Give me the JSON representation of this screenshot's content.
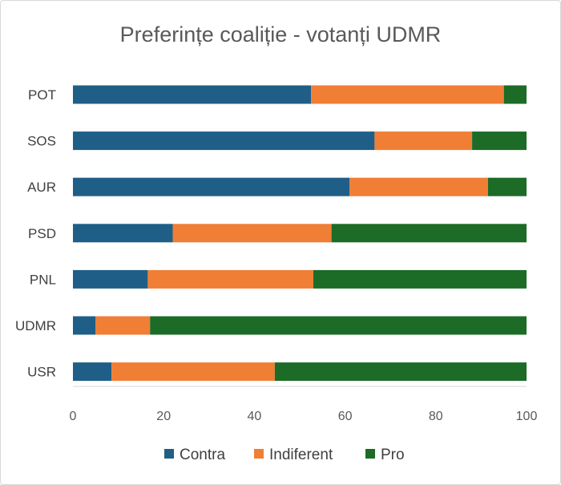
{
  "chart_data": {
    "type": "bar",
    "orientation": "horizontal",
    "stacked": true,
    "title": "Preferințe coaliție - votanți UDMR",
    "xlabel": "",
    "ylabel": "",
    "xlim": [
      0,
      100
    ],
    "x_ticks": [
      0,
      20,
      40,
      60,
      80,
      100
    ],
    "categories": [
      "POT",
      "SOS",
      "AUR",
      "PSD",
      "PNL",
      "UDMR",
      "USR"
    ],
    "series": [
      {
        "name": "Contra",
        "color": "#1f5f87",
        "values": [
          52.5,
          66.5,
          61,
          22,
          16.5,
          5,
          8.5
        ]
      },
      {
        "name": "Indiferent",
        "color": "#f07e35",
        "values": [
          42.5,
          21.5,
          30.5,
          35,
          36.5,
          12,
          36
        ]
      },
      {
        "name": "Pro",
        "color": "#1c6b27",
        "values": [
          5,
          12,
          8.5,
          43,
          47,
          83,
          55.5
        ]
      }
    ],
    "legend_position": "bottom",
    "grid": false
  }
}
